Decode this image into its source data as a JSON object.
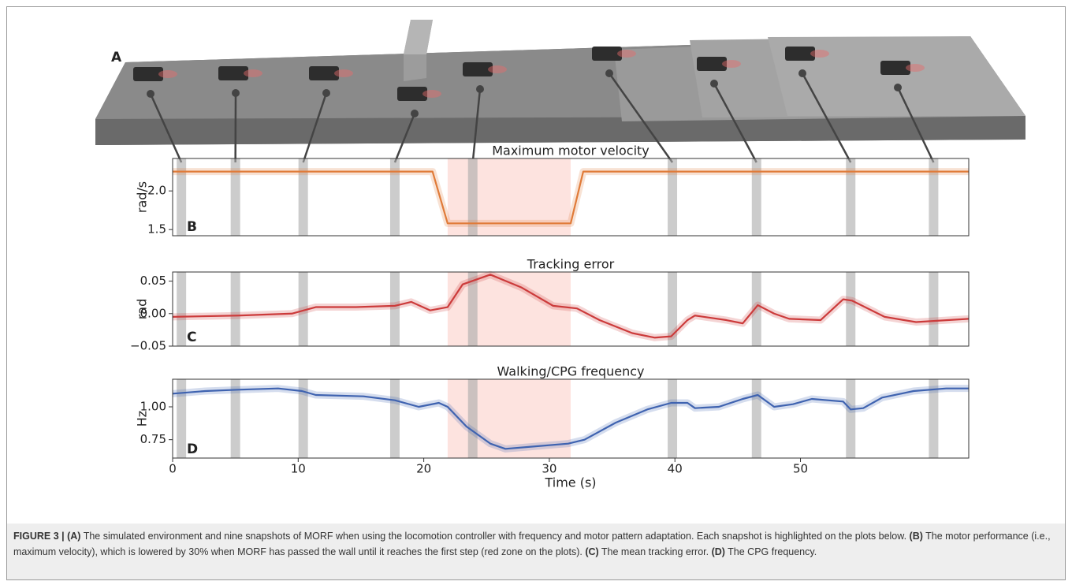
{
  "figure": {
    "panel_a_label": "A",
    "snapshot_times": [
      0.7,
      5.0,
      10.4,
      17.7,
      23.9,
      39.8,
      46.5,
      54.0,
      60.6
    ],
    "red_zone": [
      21.9,
      31.7
    ]
  },
  "chart_data": [
    {
      "type": "line",
      "title": "Maximum motor velocity",
      "ylabel": "rad/s",
      "panel": "B",
      "color": "#e07b39",
      "x": [
        0,
        20.7,
        21.9,
        31.7,
        32.7,
        63.4
      ],
      "values": [
        2.25,
        2.25,
        1.58,
        1.58,
        2.25,
        2.25
      ],
      "xlim": [
        0,
        63.4
      ],
      "ylim": [
        1.42,
        2.42
      ],
      "yticks": [
        1.5,
        {
          "value": 2,
          "label": "2.0"
        }
      ]
    },
    {
      "type": "line",
      "title": "Tracking error",
      "ylabel": "rad",
      "panel": "C",
      "color": "#cc3b3b",
      "x": [
        0,
        5.2,
        9.5,
        11.4,
        14.6,
        17.7,
        19.0,
        20.5,
        21.9,
        23.1,
        25.3,
        27.8,
        30.3,
        32.2,
        34.0,
        36.6,
        38.4,
        39.7,
        41.0,
        41.6,
        44.1,
        45.4,
        46.6,
        47.9,
        49.1,
        51.6,
        53.4,
        54.1,
        56.7,
        59.2,
        63.4
      ],
      "values": [
        -0.005,
        -0.003,
        0.0,
        0.01,
        0.01,
        0.012,
        0.018,
        0.005,
        0.01,
        0.045,
        0.06,
        0.04,
        0.012,
        0.008,
        -0.01,
        -0.03,
        -0.037,
        -0.035,
        -0.01,
        -0.003,
        -0.01,
        -0.015,
        0.013,
        0.0,
        -0.008,
        -0.01,
        0.022,
        0.02,
        -0.005,
        -0.013,
        -0.008
      ],
      "xlim": [
        0,
        63.4
      ],
      "ylim": [
        -0.05,
        0.064
      ],
      "yticks": [
        {
          "value": -0.05,
          "label": "−0.05"
        },
        {
          "value": 0,
          "label": "0.00"
        },
        {
          "value": 0.05,
          "label": "0.05"
        }
      ]
    },
    {
      "type": "line",
      "title": "Walking/CPG frequency",
      "ylabel": "Hz",
      "panel": "D",
      "color": "#3f63b0",
      "x": [
        0,
        2.6,
        5.2,
        8.4,
        10.3,
        11.4,
        15.2,
        17.7,
        19.6,
        21.2,
        21.9,
        23.4,
        25.3,
        26.5,
        29.0,
        31.5,
        32.8,
        35.3,
        37.8,
        39.7,
        41.0,
        41.6,
        43.5,
        45.4,
        46.6,
        47.9,
        49.4,
        50.9,
        53.4,
        54.0,
        55.0,
        56.5,
        59.0,
        61.6,
        63.4
      ],
      "values": [
        1.1,
        1.12,
        1.13,
        1.14,
        1.12,
        1.09,
        1.08,
        1.05,
        1.0,
        1.03,
        1.0,
        0.85,
        0.72,
        0.68,
        0.7,
        0.72,
        0.75,
        0.88,
        0.98,
        1.03,
        1.03,
        0.99,
        1.0,
        1.06,
        1.09,
        1.0,
        1.02,
        1.06,
        1.04,
        0.98,
        0.99,
        1.07,
        1.12,
        1.14,
        1.14
      ],
      "xlim": [
        0,
        63.4
      ],
      "ylim": [
        0.61,
        1.21
      ],
      "yticks": [
        {
          "value": 0.75,
          "label": "0.75"
        },
        {
          "value": 1,
          "label": "1.00"
        }
      ],
      "xticks": [
        0,
        10,
        20,
        30,
        40,
        50
      ],
      "xlabel": "Time (s)"
    }
  ],
  "caption": {
    "parts": [
      "FIGURE 3 | (A)",
      " The simulated environment and nine snapshots of MORF when using the locomotion controller with frequency and motor pattern adaptation. Each snapshot is highlighted on the plots below. ",
      "(B)",
      " The motor performance (i.e., maximum velocity), which is lowered by 30% when MORF has passed the wall until it reaches the first step (red zone on the plots). ",
      "(C)",
      " The mean tracking error. ",
      "(D)",
      " The CPG frequency."
    ]
  }
}
